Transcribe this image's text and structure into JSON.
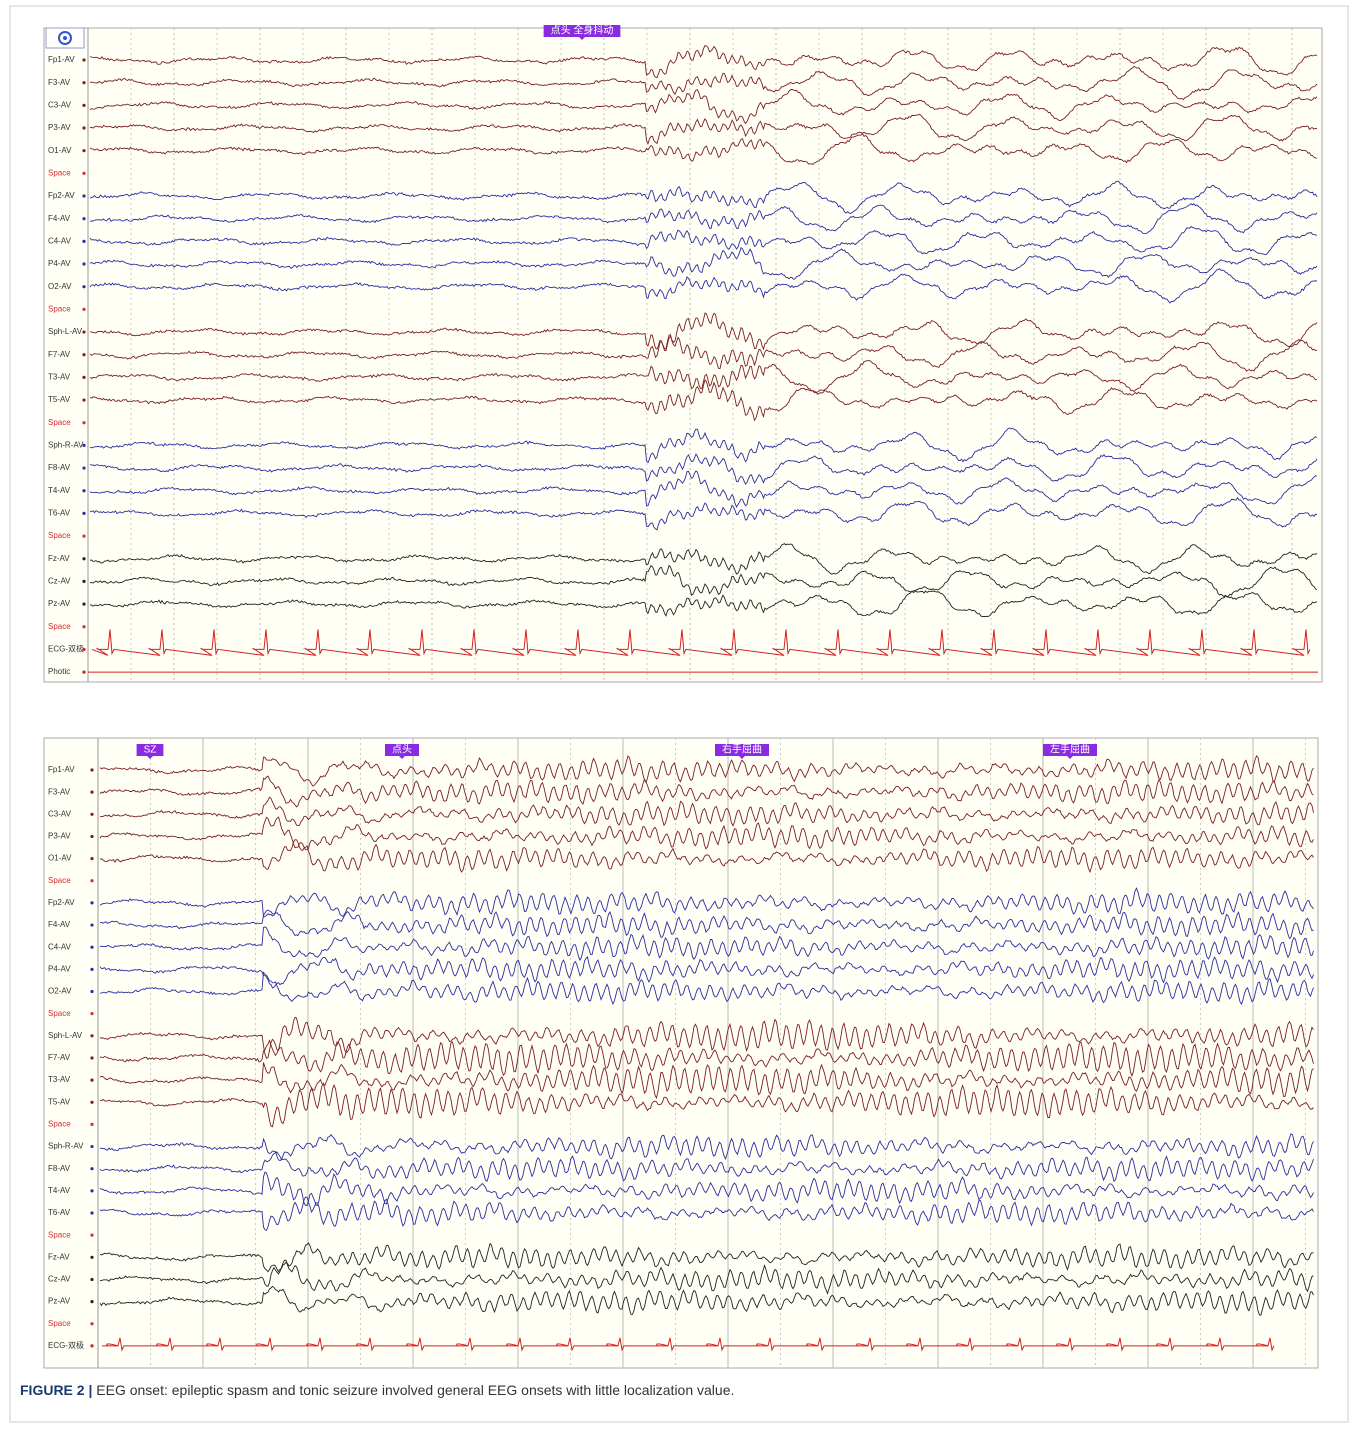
{
  "panels": [
    {
      "markers": [
        "点头 全身抖动"
      ],
      "channels": [
        {
          "label": "Fp1-AV",
          "color": "#7a1f1f"
        },
        {
          "label": "F3-AV",
          "color": "#7a1f1f"
        },
        {
          "label": "C3-AV",
          "color": "#7a1f1f"
        },
        {
          "label": "P3-AV",
          "color": "#7a1f1f"
        },
        {
          "label": "O1-AV",
          "color": "#7a1f1f"
        },
        {
          "label": "Space",
          "color": "#d03030"
        },
        {
          "label": "Fp2-AV",
          "color": "#2a2ea0"
        },
        {
          "label": "F4-AV",
          "color": "#2a2ea0"
        },
        {
          "label": "C4-AV",
          "color": "#2a2ea0"
        },
        {
          "label": "P4-AV",
          "color": "#2a2ea0"
        },
        {
          "label": "O2-AV",
          "color": "#2a2ea0"
        },
        {
          "label": "Space",
          "color": "#d03030"
        },
        {
          "label": "Sph-L-AV",
          "color": "#7a1f1f"
        },
        {
          "label": "F7-AV",
          "color": "#7a1f1f"
        },
        {
          "label": "T3-AV",
          "color": "#7a1f1f"
        },
        {
          "label": "T5-AV",
          "color": "#7a1f1f"
        },
        {
          "label": "Space",
          "color": "#d03030"
        },
        {
          "label": "Sph-R-AV",
          "color": "#2a2ea0"
        },
        {
          "label": "F8-AV",
          "color": "#2a2ea0"
        },
        {
          "label": "T4-AV",
          "color": "#2a2ea0"
        },
        {
          "label": "T6-AV",
          "color": "#2a2ea0"
        },
        {
          "label": "Space",
          "color": "#d03030"
        },
        {
          "label": "Fz-AV",
          "color": "#222222"
        },
        {
          "label": "Cz-AV",
          "color": "#222222"
        },
        {
          "label": "Pz-AV",
          "color": "#222222"
        },
        {
          "label": "Space",
          "color": "#d03030"
        },
        {
          "label": "ECG-双极",
          "color": "#d42020"
        },
        {
          "label": "Photic",
          "color": "#d42020"
        }
      ]
    },
    {
      "markers": [
        "SZ",
        "点头",
        "右手屈曲",
        "左手屈曲"
      ],
      "channels": [
        {
          "label": "Fp1-AV",
          "color": "#7a1f1f"
        },
        {
          "label": "F3-AV",
          "color": "#7a1f1f"
        },
        {
          "label": "C3-AV",
          "color": "#7a1f1f"
        },
        {
          "label": "P3-AV",
          "color": "#7a1f1f"
        },
        {
          "label": "O1-AV",
          "color": "#7a1f1f"
        },
        {
          "label": "Space",
          "color": "#d03030"
        },
        {
          "label": "Fp2-AV",
          "color": "#2a2ea0"
        },
        {
          "label": "F4-AV",
          "color": "#2a2ea0"
        },
        {
          "label": "C4-AV",
          "color": "#2a2ea0"
        },
        {
          "label": "P4-AV",
          "color": "#2a2ea0"
        },
        {
          "label": "O2-AV",
          "color": "#2a2ea0"
        },
        {
          "label": "Space",
          "color": "#d03030"
        },
        {
          "label": "Sph-L-AV",
          "color": "#7a1f1f"
        },
        {
          "label": "F7-AV",
          "color": "#7a1f1f"
        },
        {
          "label": "T3-AV",
          "color": "#7a1f1f"
        },
        {
          "label": "T5-AV",
          "color": "#7a1f1f"
        },
        {
          "label": "Space",
          "color": "#d03030"
        },
        {
          "label": "Sph-R-AV",
          "color": "#2a2ea0"
        },
        {
          "label": "F8-AV",
          "color": "#2a2ea0"
        },
        {
          "label": "T4-AV",
          "color": "#2a2ea0"
        },
        {
          "label": "T6-AV",
          "color": "#2a2ea0"
        },
        {
          "label": "Space",
          "color": "#d03030"
        },
        {
          "label": "Fz-AV",
          "color": "#222222"
        },
        {
          "label": "Cz-AV",
          "color": "#222222"
        },
        {
          "label": "Pz-AV",
          "color": "#222222"
        },
        {
          "label": "Space",
          "color": "#d03030"
        },
        {
          "label": "ECG-双极",
          "color": "#d42020"
        }
      ]
    }
  ],
  "caption": {
    "label": "FIGURE 2 |",
    "text": "EEG onset: epileptic spasm and tonic seizure involved general EEG onsets with little localization value."
  }
}
